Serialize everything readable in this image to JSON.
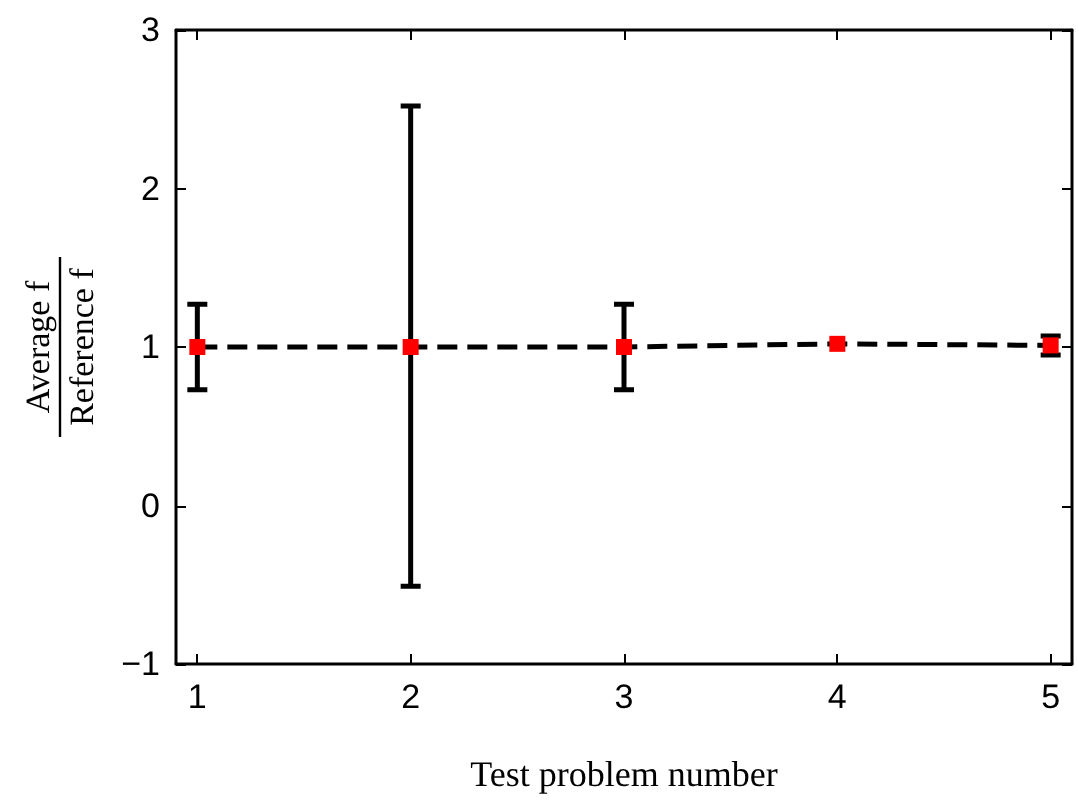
{
  "chart_data": {
    "type": "line",
    "xlabel": "Test problem number",
    "ylabel": "Average f\nReference f",
    "x": [
      1,
      2,
      3,
      4,
      5
    ],
    "series": [
      {
        "color": "#ff0000",
        "values": [
          1,
          1,
          1,
          1.02,
          1.01
        ],
        "errors": [
          0.27,
          [
            -0.51,
            2.52
          ],
          0.27,
          null,
          [
            0.95,
            1.07
          ]
        ]
      }
    ],
    "xlim": [
      0.9,
      5.1
    ],
    "xticks": [
      1,
      2,
      3,
      4,
      5
    ],
    "ylim": [
      -1,
      3
    ],
    "yticks": [
      -1,
      0,
      1,
      2,
      3
    ],
    "marker": "square",
    "line_style": "dashed"
  }
}
